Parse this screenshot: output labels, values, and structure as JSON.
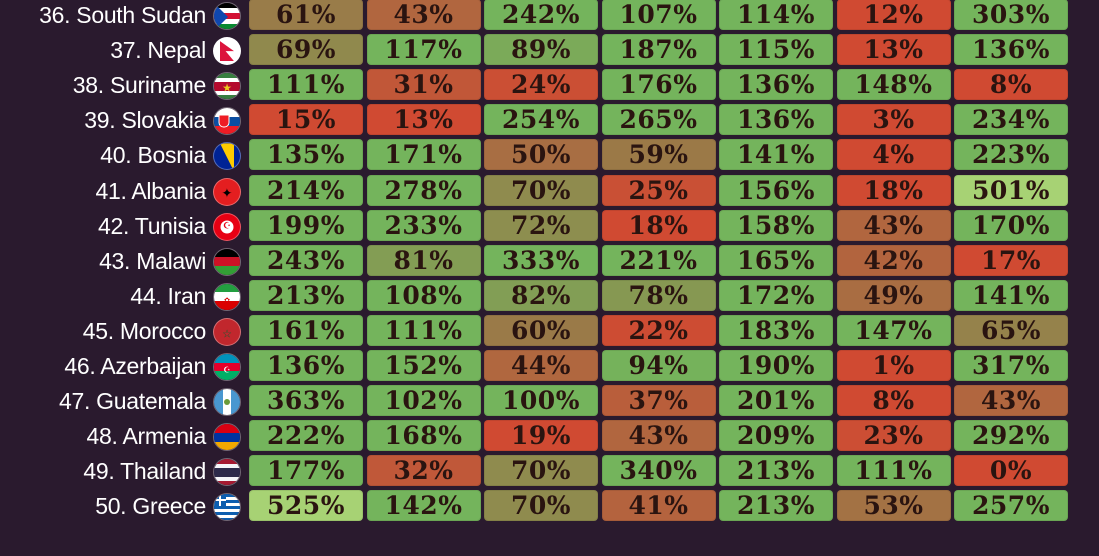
{
  "chart_data": {
    "type": "table",
    "colors": {
      "background": "#2a1a2e",
      "low": "#d04a32",
      "mid": "#9a7a48",
      "high": "#74b45c",
      "top": "#a7d274",
      "label": "#ffffff"
    },
    "rows": [
      {
        "label": "36. South Sudan",
        "flag": "south-sudan-flag-icon",
        "values": [
          61,
          43,
          242,
          107,
          114,
          12,
          303
        ]
      },
      {
        "label": "37. Nepal",
        "flag": "nepal-flag-icon",
        "values": [
          69,
          117,
          89,
          187,
          115,
          13,
          136
        ]
      },
      {
        "label": "38. Suriname",
        "flag": "suriname-flag-icon",
        "values": [
          111,
          31,
          24,
          176,
          136,
          148,
          8
        ]
      },
      {
        "label": "39. Slovakia",
        "flag": "slovakia-flag-icon",
        "values": [
          15,
          13,
          254,
          265,
          136,
          3,
          234
        ]
      },
      {
        "label": "40. Bosnia",
        "flag": "bosnia-flag-icon",
        "values": [
          135,
          171,
          50,
          59,
          141,
          4,
          223
        ]
      },
      {
        "label": "41. Albania",
        "flag": "albania-flag-icon",
        "values": [
          214,
          278,
          70,
          25,
          156,
          18,
          501
        ]
      },
      {
        "label": "42. Tunisia",
        "flag": "tunisia-flag-icon",
        "values": [
          199,
          233,
          72,
          18,
          158,
          43,
          170
        ]
      },
      {
        "label": "43. Malawi",
        "flag": "malawi-flag-icon",
        "values": [
          243,
          81,
          333,
          221,
          165,
          42,
          17
        ]
      },
      {
        "label": "44. Iran",
        "flag": "iran-flag-icon",
        "values": [
          213,
          108,
          82,
          78,
          172,
          49,
          141
        ]
      },
      {
        "label": "45. Morocco",
        "flag": "morocco-flag-icon",
        "values": [
          161,
          111,
          60,
          22,
          183,
          147,
          65
        ]
      },
      {
        "label": "46. Azerbaijan",
        "flag": "azerbaijan-flag-icon",
        "values": [
          136,
          152,
          44,
          94,
          190,
          1,
          317
        ]
      },
      {
        "label": "47. Guatemala",
        "flag": "guatemala-flag-icon",
        "values": [
          363,
          102,
          100,
          37,
          201,
          8,
          43
        ]
      },
      {
        "label": "48. Armenia",
        "flag": "armenia-flag-icon",
        "values": [
          222,
          168,
          19,
          43,
          209,
          23,
          292
        ]
      },
      {
        "label": "49. Thailand",
        "flag": "thailand-flag-icon",
        "values": [
          177,
          32,
          70,
          340,
          213,
          111,
          0
        ]
      },
      {
        "label": "50. Greece",
        "flag": "greece-flag-icon",
        "values": [
          525,
          142,
          70,
          41,
          213,
          53,
          257
        ]
      }
    ]
  }
}
